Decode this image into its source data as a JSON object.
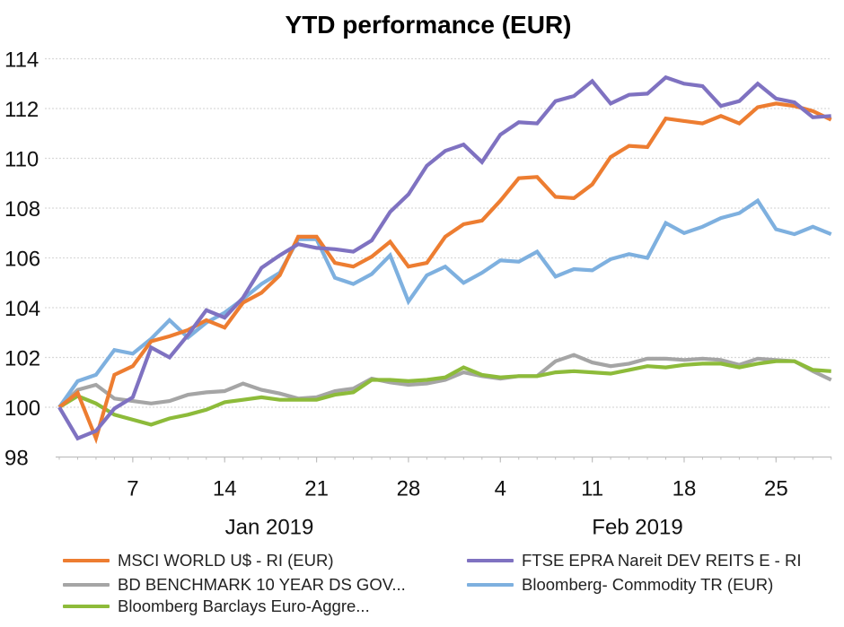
{
  "chart_data": {
    "type": "line",
    "title": "YTD performance (EUR)",
    "xlabel": "",
    "ylabel": "",
    "ylim": [
      98,
      114
    ],
    "yticks": [
      "98",
      "100",
      "102",
      "104",
      "106",
      "108",
      "110",
      "112",
      "114"
    ],
    "grid": "horizontal dotted",
    "legend_position": "bottom",
    "x_axis": {
      "week_ticks": [
        {
          "date": "2019-01-07",
          "label": "7"
        },
        {
          "date": "2019-01-14",
          "label": "14"
        },
        {
          "date": "2019-01-21",
          "label": "21"
        },
        {
          "date": "2019-01-28",
          "label": "28"
        },
        {
          "date": "2019-02-04",
          "label": "4"
        },
        {
          "date": "2019-02-11",
          "label": "11"
        },
        {
          "date": "2019-02-18",
          "label": "18"
        },
        {
          "date": "2019-02-25",
          "label": "25"
        }
      ],
      "month_labels": [
        "Jan 2019",
        "Feb 2019"
      ]
    },
    "x": [
      "2019-01-01",
      "2019-01-02",
      "2019-01-03",
      "2019-01-04",
      "2019-01-07",
      "2019-01-08",
      "2019-01-09",
      "2019-01-10",
      "2019-01-11",
      "2019-01-14",
      "2019-01-15",
      "2019-01-16",
      "2019-01-17",
      "2019-01-18",
      "2019-01-21",
      "2019-01-22",
      "2019-01-23",
      "2019-01-24",
      "2019-01-25",
      "2019-01-28",
      "2019-01-29",
      "2019-01-30",
      "2019-01-31",
      "2019-02-01",
      "2019-02-04",
      "2019-02-05",
      "2019-02-06",
      "2019-02-07",
      "2019-02-08",
      "2019-02-11",
      "2019-02-12",
      "2019-02-13",
      "2019-02-14",
      "2019-02-15",
      "2019-02-18",
      "2019-02-19",
      "2019-02-20",
      "2019-02-21",
      "2019-02-22",
      "2019-02-25",
      "2019-02-26",
      "2019-02-27",
      "2019-02-28"
    ],
    "series": [
      {
        "name": "MSCI WORLD U$ - RI (EUR)",
        "color": "#ED7D31",
        "values": [
          100,
          100.58,
          98.75,
          101.3,
          101.65,
          102.65,
          102.85,
          103.1,
          103.5,
          103.2,
          104.2,
          104.6,
          105.3,
          106.85,
          106.85,
          105.8,
          105.65,
          106.05,
          106.65,
          105.65,
          105.8,
          106.85,
          107.35,
          107.5,
          108.3,
          109.2,
          109.25,
          108.45,
          108.4,
          108.95,
          110.05,
          110.5,
          110.45,
          111.6,
          111.5,
          111.4,
          111.7,
          111.4,
          112.05,
          112.2,
          112.1,
          111.9,
          111.55
        ]
      },
      {
        "name": "FTSE EPRA Nareit DEV REITS E - RI",
        "color": "#7F72C1",
        "values": [
          100,
          98.75,
          99.05,
          99.95,
          100.4,
          102.4,
          102.0,
          102.9,
          103.9,
          103.6,
          104.4,
          105.6,
          106.1,
          106.55,
          106.4,
          106.35,
          106.25,
          106.7,
          107.85,
          108.55,
          109.7,
          110.3,
          110.55,
          109.85,
          110.95,
          111.45,
          111.4,
          112.3,
          112.5,
          113.1,
          112.2,
          112.55,
          112.6,
          113.25,
          113.0,
          112.9,
          112.1,
          112.3,
          113.0,
          112.4,
          112.25,
          111.65,
          111.7
        ]
      },
      {
        "name": "BD BENCHMARK 10 YEAR DS GOV...",
        "color": "#A5A5A5",
        "values": [
          100,
          100.7,
          100.9,
          100.35,
          100.25,
          100.15,
          100.25,
          100.5,
          100.6,
          100.65,
          100.95,
          100.7,
          100.55,
          100.35,
          100.4,
          100.65,
          100.75,
          101.15,
          101.0,
          100.9,
          100.95,
          101.1,
          101.4,
          101.25,
          101.15,
          101.25,
          101.25,
          101.85,
          102.1,
          101.8,
          101.65,
          101.75,
          101.95,
          101.95,
          101.9,
          101.95,
          101.9,
          101.7,
          101.95,
          101.9,
          101.85,
          101.45,
          101.1
        ]
      },
      {
        "name": "Bloomberg- Commodity TR (EUR)",
        "color": "#7EB0DF",
        "values": [
          100,
          101.05,
          101.3,
          102.3,
          102.15,
          102.75,
          103.5,
          102.8,
          103.4,
          103.8,
          104.35,
          104.95,
          105.4,
          106.75,
          106.75,
          105.2,
          104.95,
          105.35,
          106.1,
          104.25,
          105.3,
          105.65,
          105.0,
          105.4,
          105.9,
          105.85,
          106.25,
          105.25,
          105.55,
          105.5,
          105.95,
          106.15,
          106.0,
          107.4,
          107.0,
          107.25,
          107.6,
          107.8,
          108.3,
          107.15,
          106.95,
          107.25,
          106.95
        ]
      },
      {
        "name": "Bloomberg Barclays Euro-Aggre...",
        "color": "#8DBB3A",
        "values": [
          100,
          100.45,
          100.15,
          99.7,
          99.5,
          99.3,
          99.55,
          99.7,
          99.9,
          100.2,
          100.3,
          100.4,
          100.3,
          100.3,
          100.3,
          100.5,
          100.6,
          101.1,
          101.1,
          101.05,
          101.1,
          101.2,
          101.6,
          101.3,
          101.2,
          101.25,
          101.25,
          101.4,
          101.45,
          101.4,
          101.35,
          101.5,
          101.65,
          101.6,
          101.7,
          101.75,
          101.75,
          101.6,
          101.75,
          101.85,
          101.85,
          101.5,
          101.45
        ]
      }
    ]
  },
  "legend": [
    {
      "label": "MSCI WORLD U$ - RI (EUR)",
      "color": "#ED7D31"
    },
    {
      "label": "FTSE EPRA Nareit DEV REITS E - RI",
      "color": "#7F72C1"
    },
    {
      "label": "BD BENCHMARK 10 YEAR DS GOV...",
      "color": "#A5A5A5"
    },
    {
      "label": "Bloomberg- Commodity TR (EUR)",
      "color": "#7EB0DF"
    },
    {
      "label": "Bloomberg Barclays Euro-Aggre...",
      "color": "#8DBB3A"
    }
  ]
}
